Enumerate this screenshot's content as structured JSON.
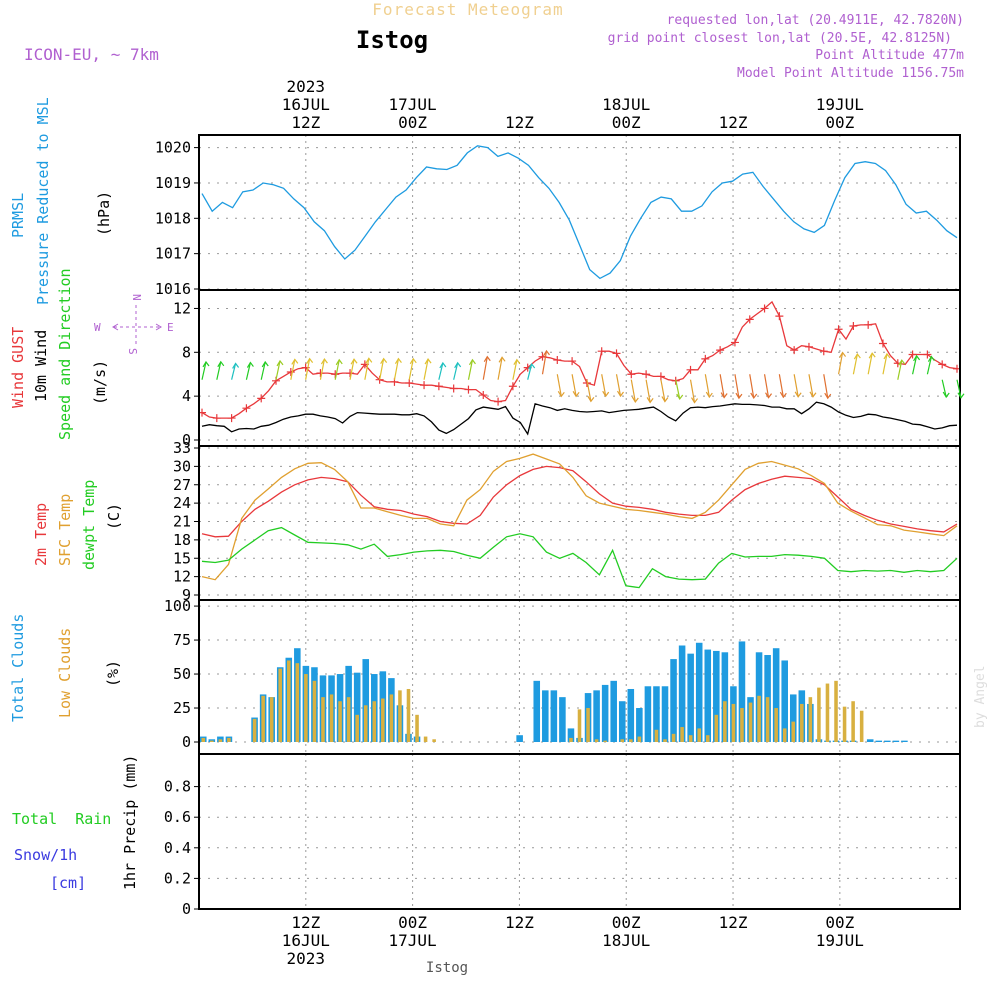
{
  "header": {
    "title_top": "Forecast Meteogram",
    "station": "Istog",
    "model": "ICON-EU, ~ 7km",
    "requested": "requested lon,lat (20.4911E, 42.7820N)",
    "grid_point": "grid point closest lon,lat (20.5E, 42.8125N)",
    "point_alt": "Point Altitude 477m",
    "model_alt": "Model Point Altitude 1156.75m",
    "watermark": "by Angel",
    "footer_station": "Istog"
  },
  "colors": {
    "pressure": "#1e9be0",
    "gust": "#e8383b",
    "wind": "#000000",
    "temp2m": "#e8383b",
    "sfc": "#e0a030",
    "dewpt": "#22cc22",
    "total_cloud": "#1e9be0",
    "low_cloud": "#d8b040",
    "info": "#b060d0",
    "rain": "#22cc22",
    "snow": "#3a3ae0"
  },
  "time_axis": {
    "top": [
      {
        "step": 8,
        "lines": [
          "2023",
          "16JUL",
          "12Z"
        ]
      },
      {
        "step": 16,
        "lines": [
          "17JUL",
          "00Z"
        ]
      },
      {
        "step": 24,
        "lines": [
          "12Z"
        ]
      },
      {
        "step": 32,
        "lines": [
          "18JUL",
          "00Z"
        ]
      },
      {
        "step": 40,
        "lines": [
          "12Z"
        ]
      },
      {
        "step": 48,
        "lines": [
          "19JUL",
          "00Z"
        ]
      }
    ],
    "bottom": [
      {
        "step": 8,
        "lines": [
          "12Z",
          "16JUL",
          "2023"
        ]
      },
      {
        "step": 16,
        "lines": [
          "00Z",
          "17JUL"
        ]
      },
      {
        "step": 24,
        "lines": [
          "12Z"
        ]
      },
      {
        "step": 32,
        "lines": [
          "00Z",
          "18JUL"
        ]
      },
      {
        "step": 40,
        "lines": [
          "12Z"
        ]
      },
      {
        "step": 48,
        "lines": [
          "00Z",
          "19JUL"
        ]
      }
    ]
  },
  "panel_labels": {
    "prmsl": "PRMSL",
    "prmsl_full": "Pressure Reduced to MSL",
    "hpa": "(hPa)",
    "gust": "Wind GUST",
    "wind10": "10m Wind",
    "wind_sd": "Speed and Direction",
    "ms": "(m/s)",
    "compass": {
      "n": "N",
      "s": "S",
      "w": "W",
      "e": "E"
    },
    "t2m": "2m Temp",
    "sfc": "SFC Temp",
    "dewpt": "dewpt Temp",
    "c": "(C)",
    "total_clouds": "Total Clouds",
    "low_clouds": "Low Clouds",
    "pct": "(%)",
    "total_rain": "Total  Rain",
    "snow": "Snow/1h",
    "cm": "[cm]",
    "precip": "1hr Precip (mm)"
  },
  "chart_data": [
    {
      "type": "line",
      "title": "PRMSL Pressure Reduced to MSL",
      "ylabel": "(hPa)",
      "ylim": [
        1016,
        1020.3
      ],
      "yticks": [
        1016,
        1017,
        1018,
        1019,
        1020
      ],
      "grid": true,
      "series": [
        {
          "name": "PRMSL",
          "x_start": 0,
          "values": [
            1018.7,
            1018.2,
            1018.45,
            1018.3,
            1018.75,
            1018.8,
            1019.0,
            1018.95,
            1018.85,
            1018.55,
            1018.3,
            1017.9,
            1017.65,
            1017.2,
            1016.85,
            1017.1,
            1017.5,
            1017.9,
            1018.25,
            1018.6,
            1018.8,
            1019.15,
            1019.45,
            1019.4,
            1019.38,
            1019.5,
            1019.85,
            1020.05,
            1020.0,
            1019.75,
            1019.85,
            1019.7,
            1019.5,
            1019.15,
            1018.85,
            1018.45,
            1017.95,
            1017.25,
            1016.55,
            1016.3,
            1016.45,
            1016.8,
            1017.5,
            1018.0,
            1018.45,
            1018.6,
            1018.55,
            1018.2,
            1018.2,
            1018.35,
            1018.75,
            1019.0,
            1019.05,
            1019.25,
            1019.3,
            1018.9,
            1018.55,
            1018.2,
            1017.9,
            1017.7,
            1017.6,
            1017.8,
            1018.5,
            1019.15,
            1019.55,
            1019.6,
            1019.55,
            1019.35,
            1018.95,
            1018.4,
            1018.15,
            1018.2,
            1017.95,
            1017.65,
            1017.45
          ]
        }
      ]
    },
    {
      "type": "line",
      "title": "Wind GUST / 10m Wind Speed and Direction",
      "ylabel": "(m/s)",
      "ylim": [
        0,
        13.5
      ],
      "yticks": [
        0,
        4,
        8,
        12
      ],
      "grid": true,
      "series": [
        {
          "name": "Wind GUST",
          "x_start": 0,
          "values": [
            2.5,
            2.1,
            2.0,
            2.0,
            2.0,
            2.4,
            2.9,
            3.3,
            3.8,
            4.5,
            5.4,
            5.8,
            6.2,
            6.5,
            6.6,
            6.0,
            6.1,
            6.1,
            6.0,
            6.1,
            6.1,
            6.0,
            6.9,
            6.1,
            5.5,
            5.3,
            5.3,
            5.2,
            5.2,
            5.1,
            5.0,
            5.0,
            4.9,
            4.8,
            4.7,
            4.7,
            4.6,
            4.6,
            4.1,
            3.6,
            3.5,
            3.6,
            4.9,
            6.0,
            6.6,
            7.2,
            7.6,
            7.5,
            7.3,
            7.2,
            7.2,
            6.7,
            5.2,
            5.0,
            8.1,
            8.1,
            7.9,
            6.8,
            6.0,
            6.1,
            6.0,
            5.8,
            5.8,
            5.5,
            5.4,
            5.6,
            6.4,
            6.4,
            7.4,
            7.7,
            8.2,
            8.5,
            8.9,
            10.3,
            11.0,
            11.5,
            12.0,
            12.6,
            11.3,
            8.6,
            8.2,
            8.6,
            8.5,
            8.3,
            8.1,
            8.0,
            10.1,
            9.2,
            10.4,
            10.5,
            10.5,
            10.6,
            8.8,
            7.7,
            7.0,
            6.9,
            7.8,
            7.8,
            7.8,
            7.3,
            6.9,
            6.6,
            6.5
          ]
        },
        {
          "name": "10m Wind",
          "x_start": 0,
          "values": [
            1.25,
            1.4,
            1.3,
            1.25,
            0.75,
            1.0,
            1.05,
            1.0,
            1.25,
            1.35,
            1.6,
            1.9,
            2.1,
            2.2,
            2.35,
            2.35,
            2.2,
            2.1,
            1.95,
            1.55,
            2.15,
            2.5,
            2.45,
            2.4,
            2.35,
            2.35,
            2.35,
            2.3,
            2.3,
            2.4,
            2.2,
            1.65,
            0.9,
            0.6,
            0.95,
            1.45,
            1.95,
            2.75,
            3.0,
            2.9,
            2.8,
            3.05,
            2.0,
            1.6,
            0.55,
            3.3,
            3.1,
            2.95,
            2.7,
            2.85,
            2.7,
            2.6,
            2.55,
            2.6,
            2.65,
            2.5,
            2.6,
            2.7,
            2.75,
            2.8,
            2.9,
            3.0,
            2.6,
            2.1,
            1.75,
            2.45,
            2.95,
            3.0,
            2.95,
            3.05,
            3.1,
            3.2,
            3.3,
            3.25,
            3.25,
            3.2,
            3.15,
            3.0,
            3.0,
            2.85,
            2.85,
            2.4,
            2.85,
            3.45,
            3.3,
            3.0,
            2.55,
            2.25,
            2.05,
            2.15,
            2.35,
            2.3,
            2.1,
            2.0,
            1.85,
            1.7,
            1.45,
            1.4,
            1.2,
            1.0,
            1.1,
            1.3,
            1.35
          ]
        }
      ]
    },
    {
      "type": "line",
      "title": "2m Temp / SFC Temp / dewpt Temp",
      "ylabel": "(C)",
      "ylim": [
        9,
        33
      ],
      "yticks": [
        9,
        12,
        15,
        18,
        21,
        24,
        27,
        30,
        33
      ],
      "grid": true,
      "series": [
        {
          "name": "2m Temp",
          "x_start": 0,
          "values": [
            19.0,
            18.5,
            18.6,
            21.0,
            23.0,
            24.3,
            25.8,
            27.0,
            27.8,
            28.2,
            28.0,
            27.5,
            25.3,
            23.4,
            23.0,
            22.8,
            22.2,
            21.8,
            21.0,
            20.7,
            20.6,
            22.0,
            25.0,
            27.0,
            28.5,
            29.5,
            30.0,
            29.8,
            29.3,
            27.5,
            25.5,
            24.0,
            23.5,
            23.3,
            23.0,
            22.5,
            22.2,
            22.0,
            22.0,
            22.5,
            24.5,
            26.2,
            27.2,
            27.9,
            28.4,
            28.2,
            28.0,
            27.0,
            25.0,
            23.0,
            22.0,
            21.2,
            20.6,
            20.2,
            19.8,
            19.5,
            19.3,
            20.6
          ]
        },
        {
          "name": "SFC Temp",
          "x_start": 0,
          "values": [
            12.0,
            11.5,
            14.0,
            21.5,
            24.5,
            26.3,
            28.2,
            29.6,
            30.5,
            30.6,
            29.5,
            27.5,
            23.2,
            23.2,
            22.6,
            22.0,
            21.5,
            21.5,
            20.6,
            20.3,
            24.5,
            26.2,
            29.2,
            30.8,
            31.3,
            32.0,
            31.2,
            30.4,
            28.2,
            25.2,
            24.0,
            23.5,
            23.0,
            22.8,
            22.5,
            22.2,
            21.8,
            21.5,
            22.5,
            24.5,
            27.0,
            29.5,
            30.5,
            30.8,
            30.2,
            29.6,
            28.5,
            27.2,
            24.0,
            22.7,
            21.6,
            20.5,
            20.3,
            19.6,
            19.3,
            19.0,
            18.7,
            20.3
          ]
        },
        {
          "name": "dewpt Temp",
          "x_start": 0,
          "values": [
            14.5,
            14.3,
            14.7,
            16.5,
            18.0,
            19.5,
            20.0,
            18.8,
            17.6,
            17.5,
            17.4,
            17.2,
            16.5,
            17.3,
            15.3,
            15.6,
            16.0,
            16.2,
            16.3,
            16.1,
            15.5,
            15.0,
            16.8,
            18.5,
            19.0,
            18.5,
            16.0,
            15.0,
            15.8,
            14.3,
            12.3,
            16.3,
            10.5,
            10.2,
            13.3,
            12.0,
            11.6,
            11.5,
            11.6,
            14.2,
            15.8,
            15.2,
            15.3,
            15.3,
            15.6,
            15.5,
            15.3,
            15.0,
            13.0,
            12.8,
            13.0,
            12.9,
            13.0,
            12.7,
            13.0,
            12.8,
            13.0,
            15.0
          ]
        }
      ]
    },
    {
      "type": "bar",
      "title": "Total Clouds / Low Clouds",
      "ylabel": "(%)",
      "ylim": [
        0,
        103
      ],
      "yticks": [
        0,
        25,
        50,
        75,
        100
      ],
      "grid": true,
      "series": [
        {
          "name": "Total Clouds",
          "x_start": 0,
          "values": [
            4,
            2,
            4,
            4,
            0,
            0,
            18,
            35,
            33,
            55,
            62,
            69,
            56,
            55,
            49,
            49,
            50,
            56,
            51,
            61,
            50,
            52,
            47,
            27,
            6,
            4,
            0,
            0,
            0,
            0,
            0,
            0,
            0,
            0,
            0,
            0,
            0,
            5,
            0,
            45,
            38,
            38,
            33,
            10,
            3,
            36,
            38,
            42,
            45,
            30,
            39,
            25,
            41,
            41,
            41,
            61,
            71,
            65,
            73,
            68,
            67,
            66,
            41,
            74,
            33,
            66,
            64,
            69,
            60,
            35,
            38,
            28,
            2,
            1,
            1,
            1,
            1,
            0,
            2,
            1,
            1,
            1,
            1
          ]
        },
        {
          "name": "Low Clouds",
          "x_start": 0,
          "values": [
            3,
            1,
            2,
            3,
            0,
            0,
            17,
            34,
            33,
            54,
            60,
            58,
            50,
            45,
            33,
            35,
            30,
            33,
            20,
            27,
            30,
            32,
            35,
            38,
            39,
            20,
            4,
            2,
            0,
            0,
            0,
            0,
            0,
            0,
            0,
            0,
            0,
            0,
            0,
            0,
            0,
            0,
            0,
            3,
            24,
            25,
            2,
            1,
            0,
            2,
            2,
            4,
            0,
            9,
            2,
            6,
            11,
            5,
            10,
            5,
            20,
            30,
            28,
            25,
            29,
            34,
            33,
            25,
            10,
            15,
            28,
            33,
            40,
            43,
            45,
            26,
            30,
            23,
            0,
            0,
            0,
            0,
            0,
            0,
            0,
            0,
            0,
            0,
            0
          ]
        }
      ]
    },
    {
      "type": "bar",
      "title": "Total Rain / Snow/1h",
      "ylabel": "1hr Precip (mm)",
      "ylim": [
        0,
        1.0
      ],
      "yticks": [
        0,
        0.2,
        0.4,
        0.6,
        0.8
      ],
      "grid": true,
      "series": [
        {
          "name": "Total Rain",
          "x_start": 0,
          "values": []
        },
        {
          "name": "Snow/1h",
          "x_start": 0,
          "values": []
        }
      ]
    }
  ]
}
